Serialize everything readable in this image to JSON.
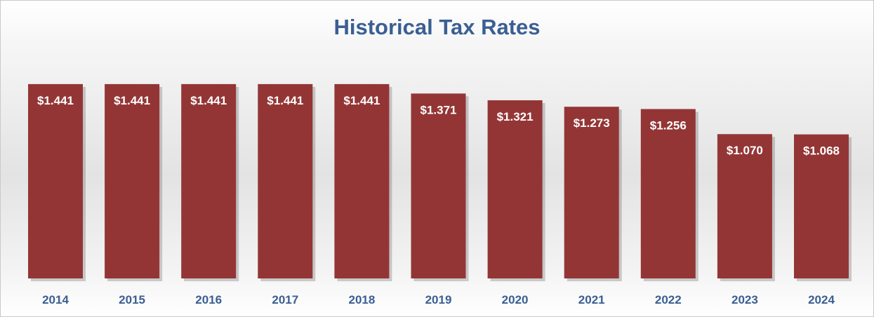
{
  "chart_data": {
    "type": "bar",
    "title": "Historical Tax Rates",
    "categories": [
      "2014",
      "2015",
      "2016",
      "2017",
      "2018",
      "2019",
      "2020",
      "2021",
      "2022",
      "2023",
      "2024"
    ],
    "values": [
      1.441,
      1.441,
      1.441,
      1.441,
      1.441,
      1.371,
      1.321,
      1.273,
      1.256,
      1.07,
      1.068
    ],
    "value_labels": [
      "$1.441",
      "$1.441",
      "$1.441",
      "$1.441",
      "$1.441",
      "$1.371",
      "$1.321",
      "$1.273",
      "$1.256",
      "$1.070",
      "$1.068"
    ],
    "xlabel": "",
    "ylabel": "",
    "ylim": [
      0,
      1.6
    ],
    "grid": false,
    "legend": "none",
    "bar_color": "#943535",
    "title_color": "#3a5f93",
    "category_label_color": "#3a5f93",
    "value_label_color": "#ffffff"
  }
}
